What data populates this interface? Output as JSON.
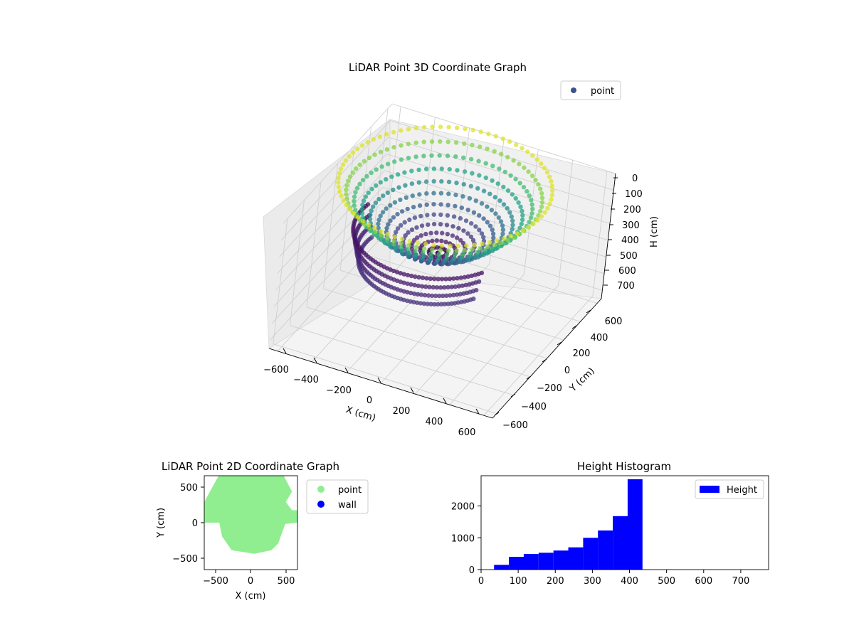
{
  "chart_data": [
    {
      "type": "scatter",
      "title": "LiDAR Point 3D Coordinate Graph",
      "xlabel": "X (cm)",
      "ylabel": "Y (cm)",
      "zlabel": "H (cm)",
      "xlim": [
        -650,
        650
      ],
      "ylim": [
        -650,
        650
      ],
      "zlim": [
        0,
        750
      ],
      "z_inverted": true,
      "x_ticks": [
        "−600",
        "−400",
        "−200",
        "0",
        "200",
        "400",
        "600"
      ],
      "y_ticks": [
        "−600",
        "−400",
        "−200",
        "0",
        "200",
        "400",
        "600"
      ],
      "z_ticks": [
        "0",
        "100",
        "200",
        "300",
        "400",
        "500",
        "600",
        "700"
      ],
      "legend": [
        {
          "label": "point",
          "color": "#3b528b"
        }
      ],
      "legend_position": "top-right",
      "colormap": "viridis",
      "grid": true
    },
    {
      "type": "scatter",
      "title": "LiDAR Point 2D Coordinate Graph",
      "xlabel": "X (cm)",
      "ylabel": "Y (cm)",
      "xlim": [
        -680,
        680
      ],
      "ylim": [
        -680,
        680
      ],
      "x_ticks": [
        "−500",
        "0",
        "500"
      ],
      "y_ticks": [
        "−500",
        "0",
        "500"
      ],
      "series": [
        {
          "name": "point",
          "color": "#90ee90"
        },
        {
          "name": "wall",
          "color": "#0000ff"
        }
      ],
      "legend_position": "outside-right",
      "grid": false
    },
    {
      "type": "bar",
      "title": "Height Histogram",
      "xlim": [
        0,
        775
      ],
      "ylim": [
        0,
        2950
      ],
      "x_ticks": [
        "0",
        "100",
        "200",
        "300",
        "400",
        "500",
        "600",
        "700"
      ],
      "y_ticks": [
        "0",
        "1000",
        "2000"
      ],
      "bin_edges": [
        35,
        75,
        115,
        155,
        195,
        235,
        275,
        315,
        355,
        395,
        435
      ],
      "values": [
        150,
        400,
        490,
        530,
        600,
        700,
        1000,
        1230,
        1680,
        2840
      ],
      "series": [
        {
          "name": "Height",
          "color": "#0000ff"
        }
      ],
      "legend_position": "top-right",
      "grid": false
    }
  ]
}
